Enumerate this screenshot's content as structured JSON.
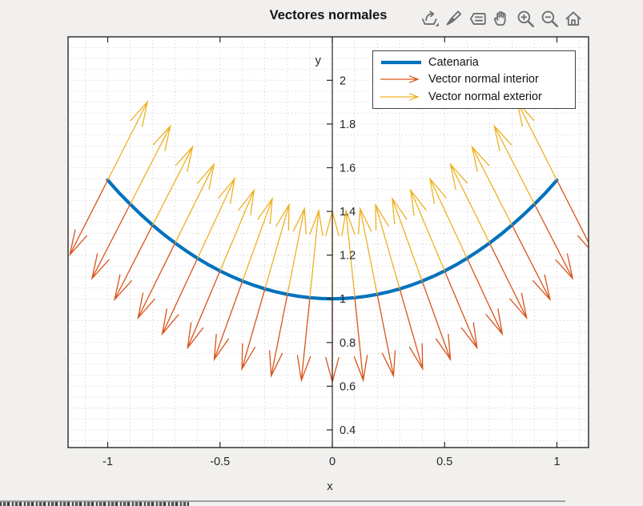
{
  "title": "Vectores normales",
  "toolbar": {
    "items": [
      {
        "name": "export-icon"
      },
      {
        "name": "brush-icon"
      },
      {
        "name": "datatip-icon"
      },
      {
        "name": "pan-icon"
      },
      {
        "name": "zoom-in-icon"
      },
      {
        "name": "zoom-out-icon"
      },
      {
        "name": "restore-view-icon"
      }
    ]
  },
  "legend": {
    "items": [
      {
        "label": "Catenaria",
        "type": "line",
        "color": "#0072BD"
      },
      {
        "label": "Vector normal interior",
        "type": "arrow",
        "color": "#D95319"
      },
      {
        "label": "Vector normal exterior",
        "type": "arrow",
        "color": "#EDB120"
      }
    ]
  },
  "axis": {
    "x": {
      "label": "x",
      "ticks": [
        {
          "v": -1,
          "t": "-1"
        },
        {
          "v": -0.5,
          "t": "-0.5"
        },
        {
          "v": 0,
          "t": "0"
        },
        {
          "v": 0.5,
          "t": "0.5"
        },
        {
          "v": 1,
          "t": "1"
        }
      ]
    },
    "y": {
      "label": "y",
      "ticks": [
        {
          "v": 0.4,
          "t": "0.4"
        },
        {
          "v": 0.6,
          "t": "0.6"
        },
        {
          "v": 0.8,
          "t": "0.8"
        },
        {
          "v": 1,
          "t": "1"
        },
        {
          "v": 1.2,
          "t": "1.2"
        },
        {
          "v": 1.4,
          "t": "1.4"
        },
        {
          "v": 1.6,
          "t": "1.6"
        },
        {
          "v": 1.8,
          "t": "1.8"
        },
        {
          "v": 2,
          "t": "2"
        }
      ]
    }
  },
  "chart_data": {
    "type": "line+quiver",
    "title": "Vectores normales",
    "xlabel": "x",
    "ylabel": "y",
    "xlim": [
      -1.1765,
      1.1408
    ],
    "ylim": [
      0.3192,
      2.199
    ],
    "grid": {
      "minor_x_step": 0.1,
      "minor_y_step": 0.05,
      "style": "dotted",
      "color": "#c9c9c9"
    },
    "legend_position": "top-right-inside",
    "series": [
      {
        "name": "Catenaria",
        "type": "line",
        "color": "#0072BD",
        "width": 4.2,
        "x": [
          -1,
          -0.95,
          -0.9,
          -0.85,
          -0.8,
          -0.75,
          -0.7,
          -0.65,
          -0.6,
          -0.55,
          -0.5,
          -0.45,
          -0.4,
          -0.35,
          -0.3,
          -0.25,
          -0.2,
          -0.15,
          -0.1,
          -0.05,
          0,
          0.05,
          0.1,
          0.15,
          0.2,
          0.25,
          0.3,
          0.35,
          0.4,
          0.45,
          0.5,
          0.55,
          0.6,
          0.65,
          0.7,
          0.75,
          0.8,
          0.85,
          0.9,
          0.95,
          1
        ],
        "y": [
          1.5431,
          1.4855,
          1.4331,
          1.3833,
          1.3374,
          1.2947,
          1.2552,
          1.2188,
          1.1855,
          1.1551,
          1.1276,
          1.103,
          1.0811,
          1.0618,
          1.0453,
          1.0314,
          1.0201,
          1.0113,
          1.005,
          1.0013,
          1,
          1.0013,
          1.005,
          1.0113,
          1.0201,
          1.0314,
          1.0453,
          1.0618,
          1.0811,
          1.103,
          1.1276,
          1.1551,
          1.1855,
          1.2188,
          1.2552,
          1.2947,
          1.3374,
          1.3833,
          1.4331,
          1.4855,
          1.5431
        ]
      },
      {
        "name": "Vector normal interior",
        "type": "quiver",
        "color": "#D95319",
        "data_name": "interior-normal-arrows",
        "x": [
          -1,
          -0.9,
          -0.8,
          -0.7,
          -0.6,
          -0.5,
          -0.4,
          -0.3,
          -0.2,
          -0.1,
          0,
          0.1,
          0.2,
          0.3,
          0.4,
          0.5,
          0.6,
          0.7,
          0.8,
          0.9,
          1
        ],
        "y": [
          1.5431,
          1.4331,
          1.3374,
          1.2552,
          1.1855,
          1.1276,
          1.0811,
          1.0453,
          1.0201,
          1.005,
          1,
          1.005,
          1.0201,
          1.0453,
          1.0811,
          1.1276,
          1.1855,
          1.2552,
          1.3374,
          1.4331,
          1.5431
        ],
        "u": [
          -0.1682,
          -0.1699,
          -0.169,
          -0.1648,
          -0.1568,
          -0.1441,
          -0.126,
          -0.102,
          -0.0722,
          -0.0375,
          0,
          0.0375,
          0.0722,
          0.102,
          0.126,
          0.1441,
          0.1568,
          0.1648,
          0.169,
          0.1699,
          0.1682
        ],
        "v": [
          -0.3408,
          -0.3399,
          -0.3404,
          -0.3424,
          -0.3462,
          -0.3516,
          -0.3585,
          -0.366,
          -0.3731,
          -0.3781,
          -0.38,
          -0.3781,
          -0.3731,
          -0.366,
          -0.3585,
          -0.3516,
          -0.3462,
          -0.3424,
          -0.3404,
          -0.3399,
          -0.3408
        ]
      },
      {
        "name": "Vector normal exterior",
        "type": "quiver",
        "color": "#EDB120",
        "data_name": "exterior-normal-arrows",
        "x": [
          -1,
          -0.9,
          -0.8,
          -0.7,
          -0.6,
          -0.5,
          -0.4,
          -0.3,
          -0.2,
          -0.1,
          0,
          0.1,
          0.2,
          0.3,
          0.4,
          0.5,
          0.6,
          0.7,
          0.8,
          0.9,
          1
        ],
        "y": [
          1.5431,
          1.4331,
          1.3374,
          1.2552,
          1.1855,
          1.1276,
          1.0811,
          1.0453,
          1.0201,
          1.005,
          1,
          1.005,
          1.0201,
          1.0453,
          1.0811,
          1.1276,
          1.1855,
          1.2552,
          1.3374,
          1.4331,
          1.5431
        ],
        "u": [
          0.177,
          0.1788,
          0.1779,
          0.1735,
          0.1651,
          0.1517,
          0.1326,
          0.1074,
          0.076,
          0.0395,
          0,
          -0.0395,
          -0.076,
          -0.1074,
          -0.1326,
          -0.1517,
          -0.1651,
          -0.1735,
          -0.1779,
          -0.1788,
          -0.177
        ],
        "v": [
          0.3587,
          0.3578,
          0.3583,
          0.3604,
          0.3644,
          0.3701,
          0.3774,
          0.3853,
          0.3927,
          0.398,
          0.4,
          0.398,
          0.3927,
          0.3853,
          0.3774,
          0.3701,
          0.3644,
          0.3604,
          0.3583,
          0.3578,
          0.3587
        ]
      }
    ]
  }
}
